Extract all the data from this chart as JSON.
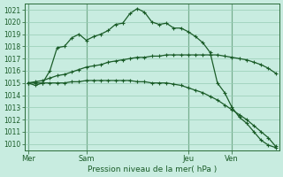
{
  "xlabel": "Pression niveau de la mer( hPa )",
  "ylim": [
    1009.5,
    1021.5
  ],
  "yticks": [
    1010,
    1011,
    1012,
    1013,
    1014,
    1015,
    1016,
    1017,
    1018,
    1019,
    1020,
    1021
  ],
  "background_color": "#c8ece0",
  "grid_color": "#96ccb4",
  "line_color": "#1a5c28",
  "day_labels": [
    "Mer",
    "Sam",
    "Jeu",
    "Ven"
  ],
  "line1_x": [
    0,
    1,
    2,
    3,
    4,
    5,
    6,
    7,
    8,
    9,
    10,
    11,
    12,
    13,
    14,
    15,
    16,
    17,
    18,
    19,
    20,
    21,
    22,
    23,
    24,
    25,
    26,
    27,
    28,
    29,
    30,
    31,
    32,
    33,
    34
  ],
  "line1_y": [
    1015.0,
    1014.8,
    1015.0,
    1016.0,
    1017.9,
    1018.0,
    1018.7,
    1019.0,
    1018.5,
    1018.8,
    1019.0,
    1019.3,
    1019.8,
    1019.9,
    1020.7,
    1021.1,
    1020.8,
    1020.0,
    1019.8,
    1019.9,
    1019.5,
    1019.5,
    1019.2,
    1018.8,
    1018.3,
    1017.5,
    1015.0,
    1014.2,
    1013.0,
    1012.2,
    1011.7,
    1011.0,
    1010.3,
    1009.9,
    1009.7
  ],
  "line2_x": [
    0,
    1,
    2,
    3,
    4,
    5,
    6,
    7,
    8,
    9,
    10,
    11,
    12,
    13,
    14,
    15,
    16,
    17,
    18,
    19,
    20,
    21,
    22,
    23,
    24,
    25,
    26,
    27,
    28,
    29,
    30,
    31,
    32,
    33,
    34
  ],
  "line2_y": [
    1015.0,
    1015.1,
    1015.2,
    1015.4,
    1015.6,
    1015.7,
    1015.9,
    1016.1,
    1016.3,
    1016.4,
    1016.5,
    1016.7,
    1016.8,
    1016.9,
    1017.0,
    1017.1,
    1017.1,
    1017.2,
    1017.2,
    1017.3,
    1017.3,
    1017.3,
    1017.3,
    1017.3,
    1017.3,
    1017.3,
    1017.3,
    1017.2,
    1017.1,
    1017.0,
    1016.9,
    1016.7,
    1016.5,
    1016.2,
    1015.8
  ],
  "line3_x": [
    0,
    1,
    2,
    3,
    4,
    5,
    6,
    7,
    8,
    9,
    10,
    11,
    12,
    13,
    14,
    15,
    16,
    17,
    18,
    19,
    20,
    21,
    22,
    23,
    24,
    25,
    26,
    27,
    28,
    29,
    30,
    31,
    32,
    33,
    34
  ],
  "line3_y": [
    1015.0,
    1015.0,
    1015.0,
    1015.0,
    1015.0,
    1015.0,
    1015.1,
    1015.1,
    1015.2,
    1015.2,
    1015.2,
    1015.2,
    1015.2,
    1015.2,
    1015.2,
    1015.1,
    1015.1,
    1015.0,
    1015.0,
    1015.0,
    1014.9,
    1014.8,
    1014.6,
    1014.4,
    1014.2,
    1013.9,
    1013.6,
    1013.2,
    1012.8,
    1012.4,
    1012.0,
    1011.5,
    1011.0,
    1010.5,
    1009.8
  ]
}
